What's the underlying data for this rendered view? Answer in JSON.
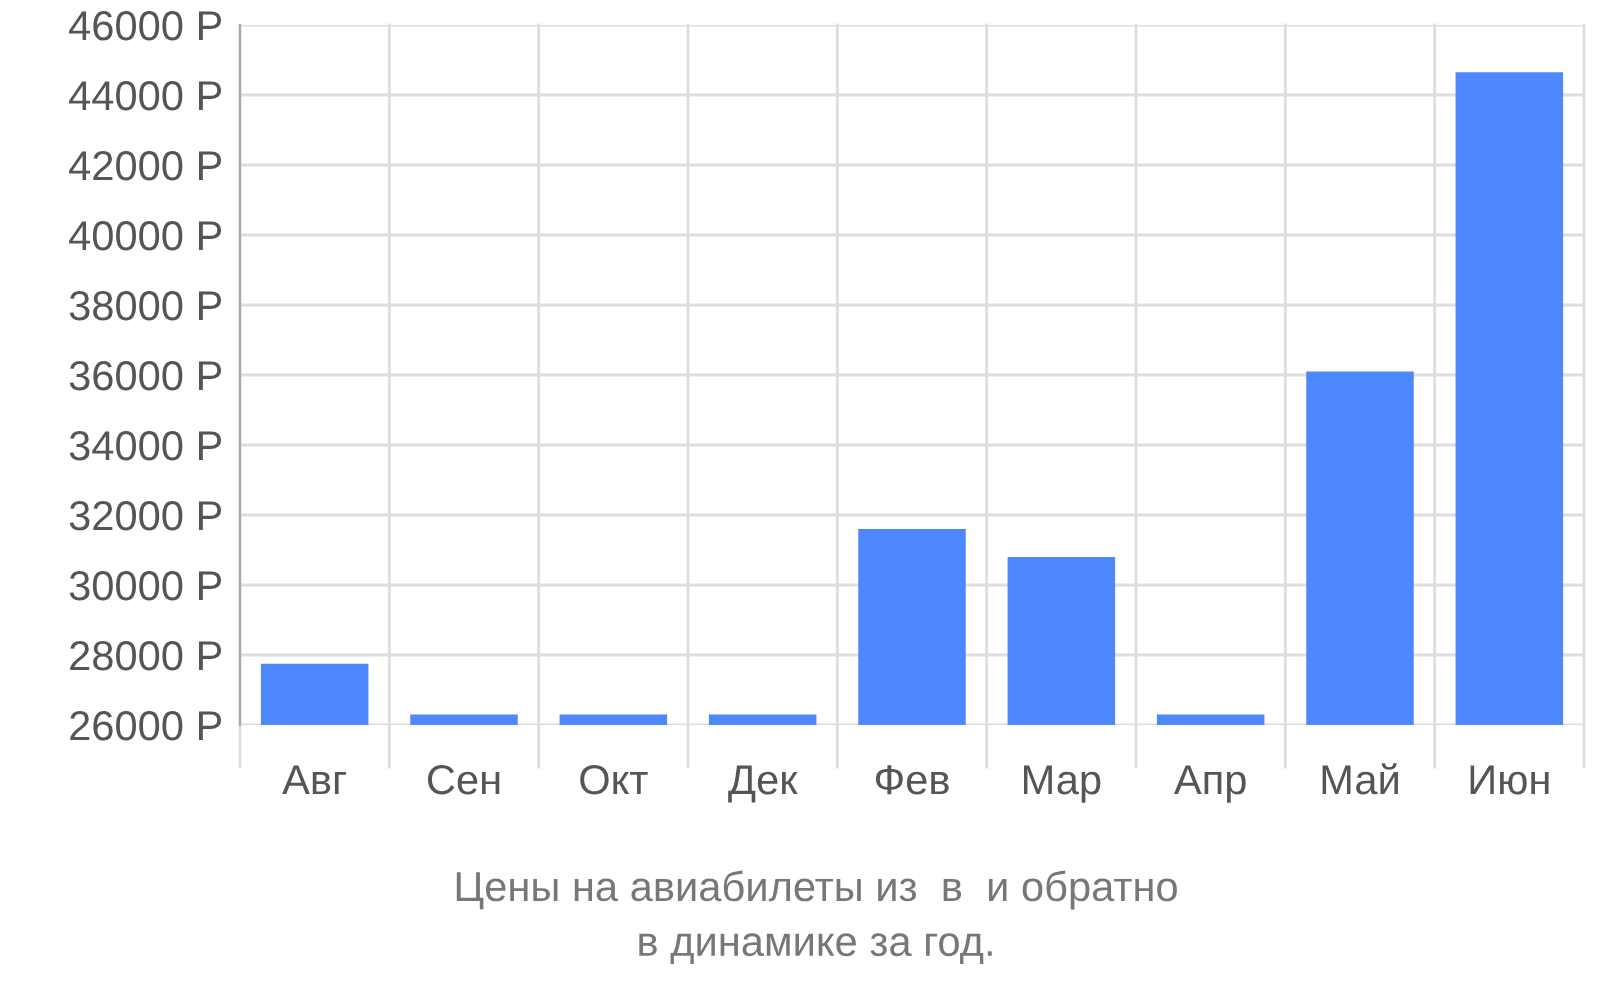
{
  "chart_data": {
    "type": "bar",
    "categories": [
      "Авг",
      "Сен",
      "Окт",
      "Дек",
      "Фев",
      "Мар",
      "Апр",
      "Май",
      "Июн"
    ],
    "values": [
      27750,
      26300,
      26300,
      26300,
      31600,
      30800,
      26300,
      36100,
      44650
    ],
    "color": "#4d88ff",
    "ylim": [
      26000,
      46000
    ],
    "yticks": [
      {
        "value": 26000,
        "label": "26000 Р"
      },
      {
        "value": 28000,
        "label": "28000 Р"
      },
      {
        "value": 30000,
        "label": "30000 Р"
      },
      {
        "value": 32000,
        "label": "32000 Р"
      },
      {
        "value": 34000,
        "label": "34000 Р"
      },
      {
        "value": 36000,
        "label": "36000 Р"
      },
      {
        "value": 38000,
        "label": "38000 Р"
      },
      {
        "value": 40000,
        "label": "40000 Р"
      },
      {
        "value": 42000,
        "label": "42000 Р"
      },
      {
        "value": 44000,
        "label": "44000 Р"
      },
      {
        "value": 46000,
        "label": "46000 Р"
      }
    ],
    "grid": true,
    "legend": false,
    "annotations": [
      "Цены на авиабилеты из  в  и обратно",
      "в динамике за год."
    ]
  }
}
